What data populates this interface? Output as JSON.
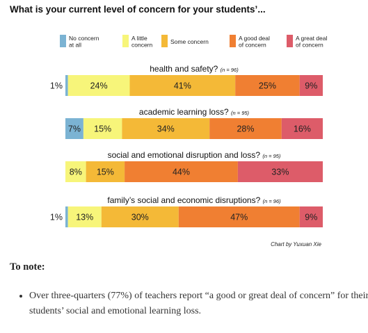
{
  "chart_data": {
    "type": "bar",
    "orientation": "horizontal",
    "stacked": true,
    "normalized": "percent",
    "title": "What is your current level of concern for your students’...",
    "legend_position": "top",
    "categories_legend": [
      {
        "label": "No concern at all",
        "lines": [
          "No concern",
          "at all"
        ],
        "color": "#7bb3d3"
      },
      {
        "label": "A little concern",
        "lines": [
          "A little",
          "concern"
        ],
        "color": "#f7f57a"
      },
      {
        "label": "Some concern",
        "lines": [
          "Some concern"
        ],
        "color": "#f4b937"
      },
      {
        "label": "A good deal of concern",
        "lines": [
          "A good deal",
          "of concern"
        ],
        "color": "#f07f32"
      },
      {
        "label": "A great deal of concern",
        "lines": [
          "A great deal",
          "of concern"
        ],
        "color": "#dd5c69"
      }
    ],
    "rows": [
      {
        "question": "health and safety?",
        "n": "(n = 96)",
        "values": [
          1,
          24,
          41,
          25,
          9
        ],
        "labels": [
          "1%",
          "24%",
          "41%",
          "25%",
          "9%"
        ]
      },
      {
        "question": "academic learning loss?",
        "n": "(n = 95)",
        "values": [
          7,
          15,
          34,
          28,
          16
        ],
        "labels": [
          "7%",
          "15%",
          "34%",
          "28%",
          "16%"
        ]
      },
      {
        "question": "social and emotional disruption and loss?",
        "n": "(n = 95)",
        "values": [
          0,
          8,
          15,
          44,
          33
        ],
        "labels": [
          "",
          "8%",
          "15%",
          "44%",
          "33%"
        ]
      },
      {
        "question": "family’s social and economic disruptions?",
        "n": "(n = 96)",
        "values": [
          1,
          13,
          30,
          47,
          9
        ],
        "labels": [
          "1%",
          "13%",
          "30%",
          "47%",
          "9%"
        ]
      }
    ],
    "credit": "Chart by Yuxuan Xie"
  },
  "notes": {
    "heading": "To note:",
    "items": [
      "Over three-quarters (77%) of teachers report “a good or great deal of concern” for their students’ social and emotional learning loss."
    ]
  }
}
